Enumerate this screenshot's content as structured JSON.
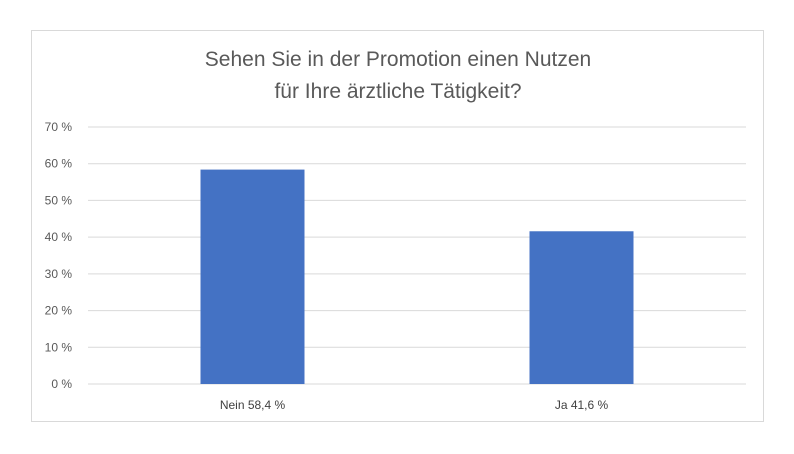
{
  "chart_data": {
    "type": "bar",
    "title": [
      "Sehen Sie in der Promotion einen Nutzen",
      "für Ihre ärztliche Tätigkeit?"
    ],
    "categories": [
      "Nein 58,4 %",
      "Ja 41,6 %"
    ],
    "values": [
      58.4,
      41.6
    ],
    "ylim": [
      0,
      70
    ],
    "yticks": [
      0,
      10,
      20,
      30,
      40,
      50,
      60,
      70
    ],
    "ytick_labels": [
      "0 %",
      "10 %",
      "20 %",
      "30 %",
      "40 %",
      "50 %",
      "60 %",
      "70 %"
    ],
    "xlabel": "",
    "ylabel": "",
    "grid": true,
    "legend": "none",
    "bar_color": "#4472C4"
  }
}
